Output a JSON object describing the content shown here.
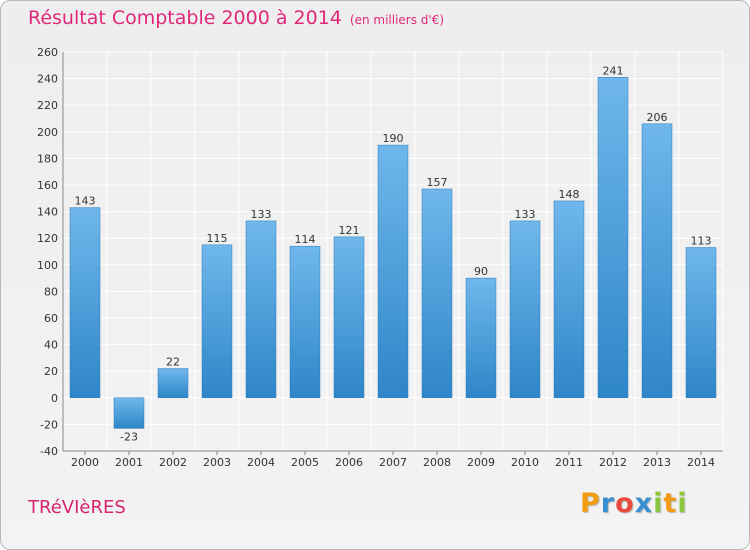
{
  "chart_data": {
    "type": "bar",
    "title": "Résultat Comptable 2000 à 2014",
    "subtitle": "(en milliers d'€)",
    "categories": [
      "2000",
      "2001",
      "2002",
      "2003",
      "2004",
      "2005",
      "2006",
      "2007",
      "2008",
      "2009",
      "2010",
      "2011",
      "2012",
      "2013",
      "2014"
    ],
    "values": [
      143,
      -23,
      22,
      115,
      133,
      114,
      121,
      190,
      157,
      90,
      133,
      148,
      241,
      206,
      113
    ],
    "ylim": [
      -40,
      260
    ],
    "yticks": [
      -40,
      -20,
      0,
      20,
      40,
      60,
      80,
      100,
      120,
      140,
      160,
      180,
      200,
      220,
      240,
      260
    ],
    "grid": true,
    "xlabel": "",
    "ylabel": ""
  },
  "footer": {
    "commune": "TRéVIèRES",
    "logo": {
      "letters": [
        "P",
        "r",
        "o",
        "x",
        "i",
        "t",
        "i"
      ],
      "colors": [
        "#f39c12",
        "#3a8fd0",
        "#e74c3c",
        "#3a8fd0",
        "#8dc63f",
        "#f39c12",
        "#8dc63f"
      ]
    }
  },
  "colors": {
    "bar_top": "#6fb7ec",
    "bar_bottom": "#2f86c8",
    "title": "#e0287a",
    "grid": "#ffffff",
    "axis": "#888888"
  }
}
